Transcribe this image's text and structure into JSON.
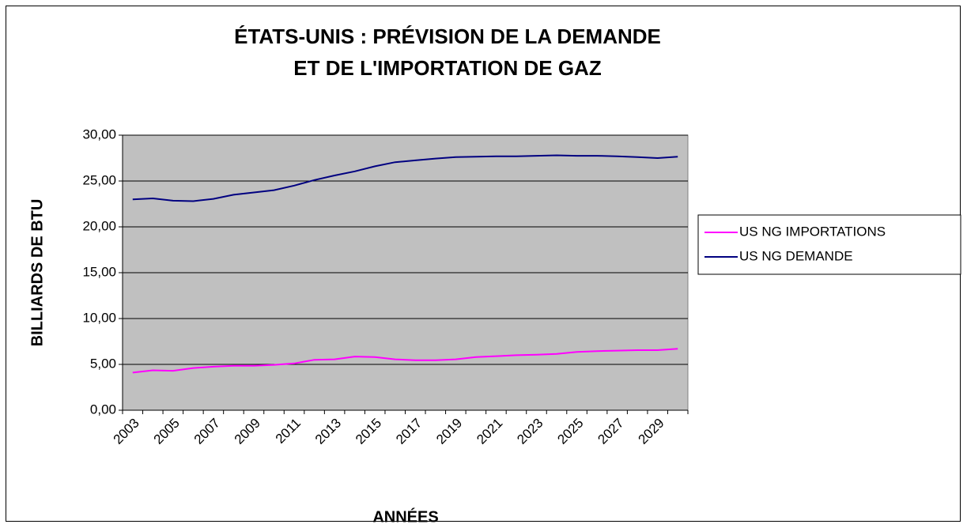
{
  "chart_data": {
    "type": "line",
    "title": [
      "ÉTATS-UNIS : PRÉVISION  DE LA DEMANDE",
      "ET DE L'IMPORTATION DE GAZ"
    ],
    "x_label": "ANNÉES",
    "y_label": "BILLIARDS DE BTU",
    "categories": [
      "2003",
      null,
      "2005",
      null,
      "2007",
      null,
      "2009",
      null,
      "2011",
      null,
      "2013",
      null,
      "2015",
      null,
      "2017",
      null,
      "2019",
      null,
      "2021",
      null,
      "2023",
      null,
      "2025",
      null,
      "2027",
      null,
      "2029",
      null
    ],
    "series": [
      {
        "name": "US NG IMPORTATIONS",
        "color": "#ff00ff",
        "values": [
          4.1,
          4.35,
          4.3,
          4.6,
          4.75,
          4.85,
          4.85,
          4.95,
          5.1,
          5.5,
          5.55,
          5.85,
          5.8,
          5.55,
          5.45,
          5.45,
          5.55,
          5.8,
          5.9,
          6.0,
          6.05,
          6.15,
          6.35,
          6.45,
          6.5,
          6.55,
          6.55,
          6.7
        ]
      },
      {
        "name": "US NG DEMANDE",
        "color": "#000080",
        "values": [
          23.0,
          23.1,
          22.85,
          22.8,
          23.05,
          23.5,
          23.75,
          24.0,
          24.5,
          25.1,
          25.6,
          26.05,
          26.6,
          27.05,
          27.25,
          27.45,
          27.6,
          27.65,
          27.7,
          27.7,
          27.75,
          27.8,
          27.75,
          27.75,
          27.7,
          27.6,
          27.5,
          27.65
        ]
      }
    ],
    "ylim": [
      0,
      30
    ],
    "yticks": [
      {
        "value": 0,
        "label": "0,00"
      },
      {
        "value": 5,
        "label": "5,00"
      },
      {
        "value": 10,
        "label": "10,00"
      },
      {
        "value": 15,
        "label": "15,00"
      },
      {
        "value": 20,
        "label": "20,00"
      },
      {
        "value": 25,
        "label": "25,00"
      },
      {
        "value": 30,
        "label": "30,00"
      }
    ],
    "grid": true,
    "legend": "right",
    "plot_background": "#c0c0c0"
  }
}
